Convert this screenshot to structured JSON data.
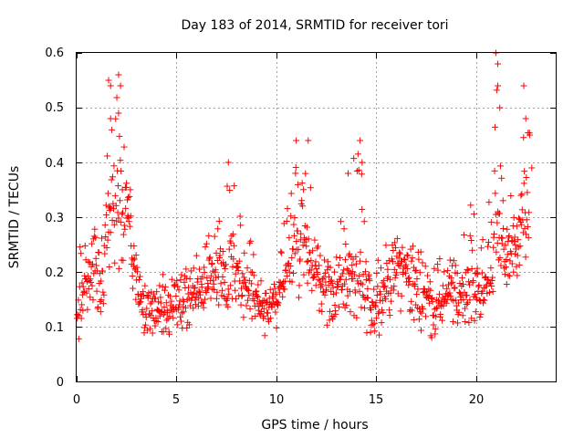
{
  "chart_data": {
    "type": "scatter",
    "title": "Day 183 of 2014, SRMTID for receiver tori",
    "xlabel": "GPS time / hours",
    "ylabel": "SRMTID / TECUs",
    "xlim": [
      0,
      24
    ],
    "ylim": [
      0,
      0.6
    ],
    "xticks": [
      0,
      5,
      10,
      15,
      20
    ],
    "xtick_labels": [
      "0",
      "5",
      "10",
      "15",
      "20"
    ],
    "yticks": [
      0,
      0.1,
      0.2,
      0.3,
      0.4,
      0.5,
      0.6
    ],
    "ytick_labels": [
      "0",
      "0.1",
      "0.2",
      "0.3",
      "0.4",
      "0.5",
      "0.6"
    ],
    "grid": true,
    "marker": "+",
    "color": "#ff0000",
    "series": [
      {
        "name": "SRMTID",
        "sampling": "dense time series, approximately 0.02 h spacing",
        "envelope": [
          {
            "x": 0.0,
            "y_low": 0.06,
            "y_typ": 0.13,
            "y_high": 0.2
          },
          {
            "x": 0.3,
            "y_low": 0.08,
            "y_typ": 0.16,
            "y_high": 0.29
          },
          {
            "x": 0.8,
            "y_low": 0.09,
            "y_typ": 0.19,
            "y_high": 0.27
          },
          {
            "x": 1.3,
            "y_low": 0.1,
            "y_typ": 0.2,
            "y_high": 0.32
          },
          {
            "x": 1.6,
            "y_low": 0.12,
            "y_typ": 0.26,
            "y_high": 0.55
          },
          {
            "x": 2.1,
            "y_low": 0.15,
            "y_typ": 0.3,
            "y_high": 0.56
          },
          {
            "x": 2.6,
            "y_low": 0.18,
            "y_typ": 0.3,
            "y_high": 0.38
          },
          {
            "x": 2.9,
            "y_low": 0.12,
            "y_typ": 0.2,
            "y_high": 0.3
          },
          {
            "x": 3.3,
            "y_low": 0.08,
            "y_typ": 0.13,
            "y_high": 0.2
          },
          {
            "x": 4.0,
            "y_low": 0.06,
            "y_typ": 0.12,
            "y_high": 0.2
          },
          {
            "x": 5.0,
            "y_low": 0.07,
            "y_typ": 0.13,
            "y_high": 0.2
          },
          {
            "x": 6.0,
            "y_low": 0.09,
            "y_typ": 0.16,
            "y_high": 0.26
          },
          {
            "x": 7.0,
            "y_low": 0.1,
            "y_typ": 0.17,
            "y_high": 0.27
          },
          {
            "x": 7.6,
            "y_low": 0.1,
            "y_typ": 0.2,
            "y_high": 0.4
          },
          {
            "x": 8.3,
            "y_low": 0.1,
            "y_typ": 0.18,
            "y_high": 0.31
          },
          {
            "x": 9.0,
            "y_low": 0.09,
            "y_typ": 0.14,
            "y_high": 0.24
          },
          {
            "x": 9.6,
            "y_low": 0.07,
            "y_typ": 0.12,
            "y_high": 0.2
          },
          {
            "x": 10.2,
            "y_low": 0.1,
            "y_typ": 0.16,
            "y_high": 0.24
          },
          {
            "x": 10.9,
            "y_low": 0.14,
            "y_typ": 0.24,
            "y_high": 0.43
          },
          {
            "x": 11.5,
            "y_low": 0.14,
            "y_typ": 0.24,
            "y_high": 0.44
          },
          {
            "x": 12.2,
            "y_low": 0.1,
            "y_typ": 0.17,
            "y_high": 0.26
          },
          {
            "x": 13.0,
            "y_low": 0.08,
            "y_typ": 0.16,
            "y_high": 0.25
          },
          {
            "x": 13.6,
            "y_low": 0.1,
            "y_typ": 0.18,
            "y_high": 0.38
          },
          {
            "x": 14.2,
            "y_low": 0.08,
            "y_typ": 0.17,
            "y_high": 0.44
          },
          {
            "x": 14.8,
            "y_low": 0.06,
            "y_typ": 0.13,
            "y_high": 0.22
          },
          {
            "x": 15.5,
            "y_low": 0.09,
            "y_typ": 0.17,
            "y_high": 0.26
          },
          {
            "x": 16.2,
            "y_low": 0.1,
            "y_typ": 0.2,
            "y_high": 0.27
          },
          {
            "x": 17.0,
            "y_low": 0.08,
            "y_typ": 0.17,
            "y_high": 0.25
          },
          {
            "x": 18.0,
            "y_low": 0.07,
            "y_typ": 0.14,
            "y_high": 0.22
          },
          {
            "x": 19.0,
            "y_low": 0.08,
            "y_typ": 0.15,
            "y_high": 0.26
          },
          {
            "x": 19.8,
            "y_low": 0.08,
            "y_typ": 0.16,
            "y_high": 0.33
          },
          {
            "x": 20.4,
            "y_low": 0.09,
            "y_typ": 0.15,
            "y_high": 0.26
          },
          {
            "x": 21.0,
            "y_low": 0.14,
            "y_typ": 0.26,
            "y_high": 0.6
          },
          {
            "x": 21.5,
            "y_low": 0.15,
            "y_typ": 0.22,
            "y_high": 0.3
          },
          {
            "x": 22.0,
            "y_low": 0.15,
            "y_typ": 0.24,
            "y_high": 0.38
          },
          {
            "x": 22.4,
            "y_low": 0.16,
            "y_typ": 0.3,
            "y_high": 0.53
          },
          {
            "x": 22.7,
            "y_low": 0.15,
            "y_typ": 0.3,
            "y_high": 0.45
          }
        ],
        "notable_peaks": [
          {
            "x": 1.6,
            "y": 0.55
          },
          {
            "x": 1.7,
            "y": 0.54
          },
          {
            "x": 2.1,
            "y": 0.56
          },
          {
            "x": 2.2,
            "y": 0.54
          },
          {
            "x": 1.7,
            "y": 0.48
          },
          {
            "x": 2.1,
            "y": 0.49
          },
          {
            "x": 7.6,
            "y": 0.4
          },
          {
            "x": 11.0,
            "y": 0.44
          },
          {
            "x": 11.6,
            "y": 0.44
          },
          {
            "x": 13.6,
            "y": 0.38
          },
          {
            "x": 14.2,
            "y": 0.44
          },
          {
            "x": 14.3,
            "y": 0.4
          },
          {
            "x": 21.0,
            "y": 0.6
          },
          {
            "x": 21.1,
            "y": 0.58
          },
          {
            "x": 21.1,
            "y": 0.54
          },
          {
            "x": 21.2,
            "y": 0.5
          },
          {
            "x": 22.4,
            "y": 0.54
          },
          {
            "x": 22.5,
            "y": 0.48
          },
          {
            "x": 22.7,
            "y": 0.45
          },
          {
            "x": 22.8,
            "y": 0.39
          }
        ]
      }
    ]
  }
}
